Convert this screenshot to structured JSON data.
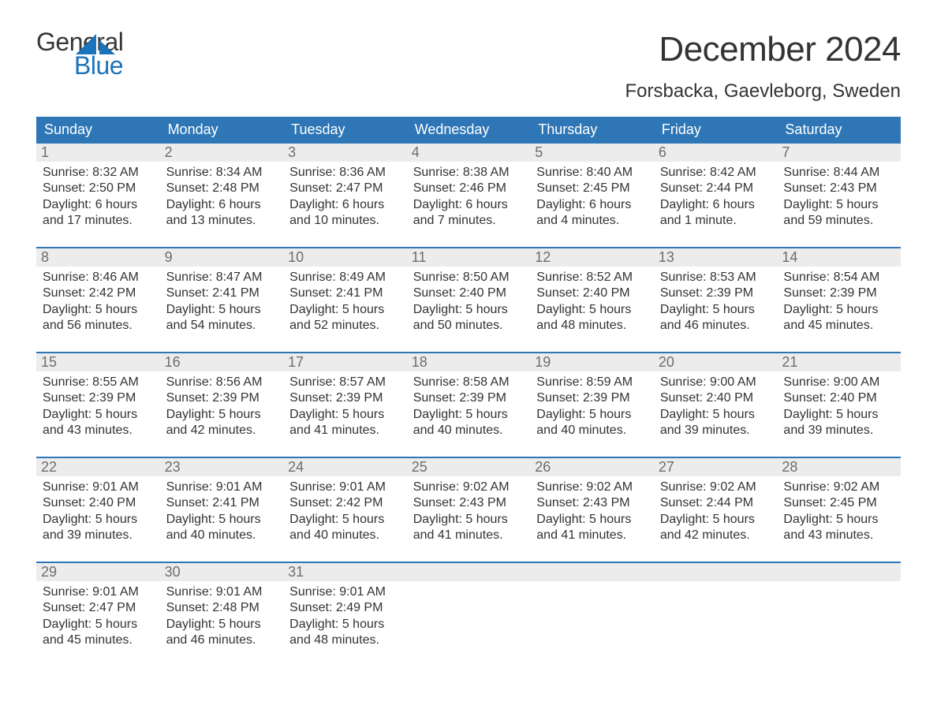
{
  "brand": {
    "word1": "General",
    "word2": "Blue",
    "accent_color": "#1b73bb"
  },
  "title": "December 2024",
  "location": "Forsbacka, Gaevleborg, Sweden",
  "colors": {
    "header_bg": "#2e76b6",
    "header_text": "#ffffff",
    "daynum_bg": "#ececec",
    "daynum_text": "#6d6d6d",
    "body_text": "#333333",
    "week_divider": "#2e76b6",
    "page_bg": "#ffffff"
  },
  "font": {
    "family": "Arial",
    "title_size_pt": 33,
    "location_size_pt": 18,
    "header_size_pt": 14,
    "body_size_pt": 12
  },
  "day_headers": [
    "Sunday",
    "Monday",
    "Tuesday",
    "Wednesday",
    "Thursday",
    "Friday",
    "Saturday"
  ],
  "weeks": [
    {
      "days": [
        {
          "num": "1",
          "sunrise": "Sunrise: 8:32 AM",
          "sunset": "Sunset: 2:50 PM",
          "daylight1": "Daylight: 6 hours",
          "daylight2": "and 17 minutes."
        },
        {
          "num": "2",
          "sunrise": "Sunrise: 8:34 AM",
          "sunset": "Sunset: 2:48 PM",
          "daylight1": "Daylight: 6 hours",
          "daylight2": "and 13 minutes."
        },
        {
          "num": "3",
          "sunrise": "Sunrise: 8:36 AM",
          "sunset": "Sunset: 2:47 PM",
          "daylight1": "Daylight: 6 hours",
          "daylight2": "and 10 minutes."
        },
        {
          "num": "4",
          "sunrise": "Sunrise: 8:38 AM",
          "sunset": "Sunset: 2:46 PM",
          "daylight1": "Daylight: 6 hours",
          "daylight2": "and 7 minutes."
        },
        {
          "num": "5",
          "sunrise": "Sunrise: 8:40 AM",
          "sunset": "Sunset: 2:45 PM",
          "daylight1": "Daylight: 6 hours",
          "daylight2": "and 4 minutes."
        },
        {
          "num": "6",
          "sunrise": "Sunrise: 8:42 AM",
          "sunset": "Sunset: 2:44 PM",
          "daylight1": "Daylight: 6 hours",
          "daylight2": "and 1 minute."
        },
        {
          "num": "7",
          "sunrise": "Sunrise: 8:44 AM",
          "sunset": "Sunset: 2:43 PM",
          "daylight1": "Daylight: 5 hours",
          "daylight2": "and 59 minutes."
        }
      ]
    },
    {
      "days": [
        {
          "num": "8",
          "sunrise": "Sunrise: 8:46 AM",
          "sunset": "Sunset: 2:42 PM",
          "daylight1": "Daylight: 5 hours",
          "daylight2": "and 56 minutes."
        },
        {
          "num": "9",
          "sunrise": "Sunrise: 8:47 AM",
          "sunset": "Sunset: 2:41 PM",
          "daylight1": "Daylight: 5 hours",
          "daylight2": "and 54 minutes."
        },
        {
          "num": "10",
          "sunrise": "Sunrise: 8:49 AM",
          "sunset": "Sunset: 2:41 PM",
          "daylight1": "Daylight: 5 hours",
          "daylight2": "and 52 minutes."
        },
        {
          "num": "11",
          "sunrise": "Sunrise: 8:50 AM",
          "sunset": "Sunset: 2:40 PM",
          "daylight1": "Daylight: 5 hours",
          "daylight2": "and 50 minutes."
        },
        {
          "num": "12",
          "sunrise": "Sunrise: 8:52 AM",
          "sunset": "Sunset: 2:40 PM",
          "daylight1": "Daylight: 5 hours",
          "daylight2": "and 48 minutes."
        },
        {
          "num": "13",
          "sunrise": "Sunrise: 8:53 AM",
          "sunset": "Sunset: 2:39 PM",
          "daylight1": "Daylight: 5 hours",
          "daylight2": "and 46 minutes."
        },
        {
          "num": "14",
          "sunrise": "Sunrise: 8:54 AM",
          "sunset": "Sunset: 2:39 PM",
          "daylight1": "Daylight: 5 hours",
          "daylight2": "and 45 minutes."
        }
      ]
    },
    {
      "days": [
        {
          "num": "15",
          "sunrise": "Sunrise: 8:55 AM",
          "sunset": "Sunset: 2:39 PM",
          "daylight1": "Daylight: 5 hours",
          "daylight2": "and 43 minutes."
        },
        {
          "num": "16",
          "sunrise": "Sunrise: 8:56 AM",
          "sunset": "Sunset: 2:39 PM",
          "daylight1": "Daylight: 5 hours",
          "daylight2": "and 42 minutes."
        },
        {
          "num": "17",
          "sunrise": "Sunrise: 8:57 AM",
          "sunset": "Sunset: 2:39 PM",
          "daylight1": "Daylight: 5 hours",
          "daylight2": "and 41 minutes."
        },
        {
          "num": "18",
          "sunrise": "Sunrise: 8:58 AM",
          "sunset": "Sunset: 2:39 PM",
          "daylight1": "Daylight: 5 hours",
          "daylight2": "and 40 minutes."
        },
        {
          "num": "19",
          "sunrise": "Sunrise: 8:59 AM",
          "sunset": "Sunset: 2:39 PM",
          "daylight1": "Daylight: 5 hours",
          "daylight2": "and 40 minutes."
        },
        {
          "num": "20",
          "sunrise": "Sunrise: 9:00 AM",
          "sunset": "Sunset: 2:40 PM",
          "daylight1": "Daylight: 5 hours",
          "daylight2": "and 39 minutes."
        },
        {
          "num": "21",
          "sunrise": "Sunrise: 9:00 AM",
          "sunset": "Sunset: 2:40 PM",
          "daylight1": "Daylight: 5 hours",
          "daylight2": "and 39 minutes."
        }
      ]
    },
    {
      "days": [
        {
          "num": "22",
          "sunrise": "Sunrise: 9:01 AM",
          "sunset": "Sunset: 2:40 PM",
          "daylight1": "Daylight: 5 hours",
          "daylight2": "and 39 minutes."
        },
        {
          "num": "23",
          "sunrise": "Sunrise: 9:01 AM",
          "sunset": "Sunset: 2:41 PM",
          "daylight1": "Daylight: 5 hours",
          "daylight2": "and 40 minutes."
        },
        {
          "num": "24",
          "sunrise": "Sunrise: 9:01 AM",
          "sunset": "Sunset: 2:42 PM",
          "daylight1": "Daylight: 5 hours",
          "daylight2": "and 40 minutes."
        },
        {
          "num": "25",
          "sunrise": "Sunrise: 9:02 AM",
          "sunset": "Sunset: 2:43 PM",
          "daylight1": "Daylight: 5 hours",
          "daylight2": "and 41 minutes."
        },
        {
          "num": "26",
          "sunrise": "Sunrise: 9:02 AM",
          "sunset": "Sunset: 2:43 PM",
          "daylight1": "Daylight: 5 hours",
          "daylight2": "and 41 minutes."
        },
        {
          "num": "27",
          "sunrise": "Sunrise: 9:02 AM",
          "sunset": "Sunset: 2:44 PM",
          "daylight1": "Daylight: 5 hours",
          "daylight2": "and 42 minutes."
        },
        {
          "num": "28",
          "sunrise": "Sunrise: 9:02 AM",
          "sunset": "Sunset: 2:45 PM",
          "daylight1": "Daylight: 5 hours",
          "daylight2": "and 43 minutes."
        }
      ]
    },
    {
      "days": [
        {
          "num": "29",
          "sunrise": "Sunrise: 9:01 AM",
          "sunset": "Sunset: 2:47 PM",
          "daylight1": "Daylight: 5 hours",
          "daylight2": "and 45 minutes."
        },
        {
          "num": "30",
          "sunrise": "Sunrise: 9:01 AM",
          "sunset": "Sunset: 2:48 PM",
          "daylight1": "Daylight: 5 hours",
          "daylight2": "and 46 minutes."
        },
        {
          "num": "31",
          "sunrise": "Sunrise: 9:01 AM",
          "sunset": "Sunset: 2:49 PM",
          "daylight1": "Daylight: 5 hours",
          "daylight2": "and 48 minutes."
        },
        {
          "num": "",
          "sunrise": "",
          "sunset": "",
          "daylight1": "",
          "daylight2": ""
        },
        {
          "num": "",
          "sunrise": "",
          "sunset": "",
          "daylight1": "",
          "daylight2": ""
        },
        {
          "num": "",
          "sunrise": "",
          "sunset": "",
          "daylight1": "",
          "daylight2": ""
        },
        {
          "num": "",
          "sunrise": "",
          "sunset": "",
          "daylight1": "",
          "daylight2": ""
        }
      ]
    }
  ]
}
